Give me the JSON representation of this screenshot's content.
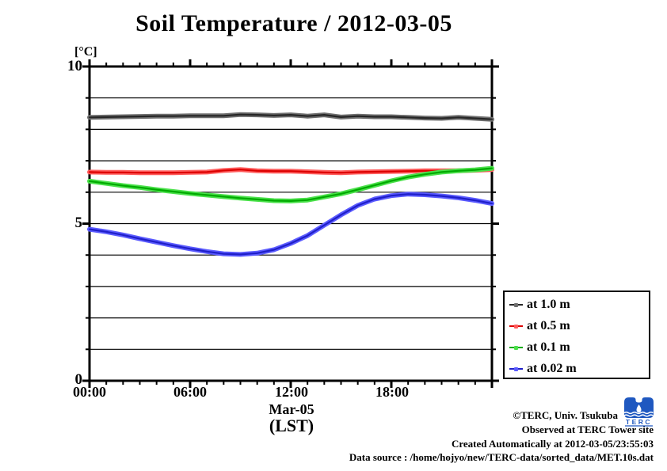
{
  "chart": {
    "title": "Soil Temperature / 2012-03-05",
    "unit_label": "[°C]",
    "xlabel_date": "Mar-05",
    "xlabel_tz": "(LST)"
  },
  "chart_data": {
    "type": "line",
    "title": "Soil Temperature / 2012-03-05",
    "xlabel": "(LST)  Mar-05",
    "ylabel": "[°C]",
    "ylim": [
      0,
      10
    ],
    "xlim_hours": [
      0,
      24
    ],
    "grid": "horizontal",
    "legend_position": "outside-right-bottom",
    "x_tick_labels": [
      "00:00",
      "06:00",
      "12:00",
      "18:00"
    ],
    "y_tick_labels": [
      "10",
      "5",
      "0"
    ],
    "x_major_hours": [
      0,
      6,
      12,
      18,
      24
    ],
    "x_minor_step_hours": 1,
    "y_major_ticks": [
      0,
      5,
      10
    ],
    "y_grid_values": [
      1,
      2,
      3,
      4,
      5,
      6,
      7,
      8,
      9
    ],
    "x_hours": [
      0,
      1,
      2,
      3,
      4,
      5,
      6,
      7,
      8,
      9,
      10,
      11,
      12,
      13,
      14,
      15,
      16,
      17,
      18,
      19,
      20,
      21,
      22,
      23,
      24
    ],
    "series": [
      {
        "name": "at 1.0 m",
        "depth_m": 1.0,
        "color_core": "#262626",
        "color_halo": "#6e6e6e",
        "values": [
          8.38,
          8.39,
          8.4,
          8.41,
          8.42,
          8.42,
          8.43,
          8.43,
          8.43,
          8.47,
          8.46,
          8.44,
          8.46,
          8.42,
          8.46,
          8.39,
          8.42,
          8.4,
          8.4,
          8.38,
          8.36,
          8.35,
          8.38,
          8.35,
          8.32
        ]
      },
      {
        "name": "at 0.5 m",
        "depth_m": 0.5,
        "color_core": "#dc0000",
        "color_halo": "#ff5c5c",
        "values": [
          6.64,
          6.63,
          6.63,
          6.62,
          6.62,
          6.62,
          6.63,
          6.64,
          6.69,
          6.72,
          6.68,
          6.67,
          6.67,
          6.65,
          6.63,
          6.62,
          6.64,
          6.65,
          6.66,
          6.67,
          6.68,
          6.68,
          6.68,
          6.7,
          6.72
        ]
      },
      {
        "name": "at 0.1 m",
        "depth_m": 0.1,
        "color_core": "#00aa00",
        "color_halo": "#4ae14a",
        "values": [
          6.35,
          6.28,
          6.21,
          6.15,
          6.08,
          6.02,
          5.96,
          5.91,
          5.86,
          5.81,
          5.77,
          5.73,
          5.72,
          5.75,
          5.85,
          5.95,
          6.08,
          6.22,
          6.36,
          6.48,
          6.57,
          6.64,
          6.68,
          6.71,
          6.76
        ]
      },
      {
        "name": "at 0.02 m",
        "depth_m": 0.02,
        "color_core": "#1f1fc8",
        "color_halo": "#5a5aff",
        "values": [
          4.82,
          4.74,
          4.64,
          4.52,
          4.41,
          4.3,
          4.2,
          4.11,
          4.04,
          4.02,
          4.06,
          4.17,
          4.37,
          4.62,
          4.95,
          5.28,
          5.58,
          5.78,
          5.89,
          5.94,
          5.92,
          5.88,
          5.82,
          5.74,
          5.64
        ]
      }
    ]
  },
  "legend": {
    "entries": [
      {
        "label": "at 1.0 m"
      },
      {
        "label": "at 0.5 m"
      },
      {
        "label": "at 0.1 m"
      },
      {
        "label": "at 0.02 m"
      }
    ]
  },
  "footer": {
    "copyright": "©TERC, Univ. Tsukuba",
    "observed": "Observed at TERC Tower site",
    "created": "Created Automatically at 2012-03-05/23:55:03",
    "source": "Data source : /home/hojyo/new/TERC-data/sorted_data/MET.10s.dat",
    "logo_text": "TERC",
    "logo_color": "#1f58c0"
  },
  "colors": {
    "axis": "#000000",
    "background": "#ffffff"
  }
}
